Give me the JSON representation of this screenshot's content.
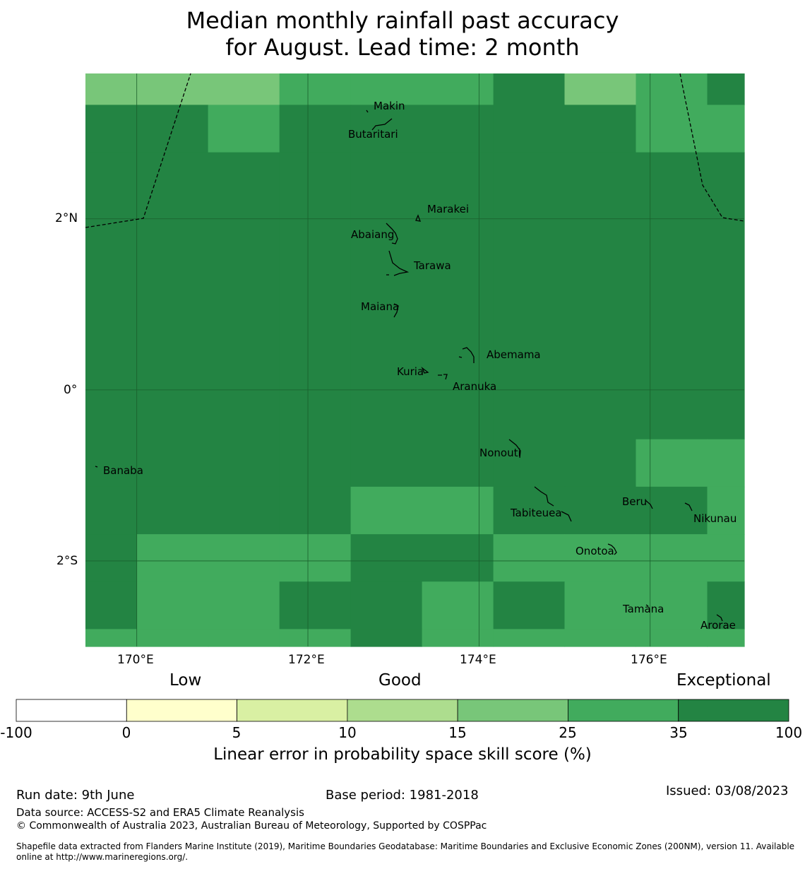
{
  "title": {
    "line1": "Median monthly rainfall past accuracy",
    "line2": "for August. Lead time: 2 month"
  },
  "map": {
    "lon_range": [
      169.4,
      177.1
    ],
    "lat_range": [
      -3.0,
      3.7
    ],
    "x_ticks": [
      "170°E",
      "172°E",
      "174°E",
      "176°E"
    ],
    "y_ticks": [
      "2°N",
      "0°",
      "2°S"
    ],
    "grid_cells": {
      "col_edges_lon": [
        169.4,
        170.0,
        170.833,
        171.667,
        172.5,
        173.333,
        174.167,
        175.0,
        175.833,
        176.667,
        177.1
      ],
      "row_edges_lat": [
        3.7,
        3.333,
        2.778,
        -0.577,
        -1.132,
        -1.687,
        -2.242,
        -2.797,
        -3.0
      ],
      "skill_rows": [
        [
          25,
          25,
          25,
          35,
          35,
          35,
          100,
          25,
          35,
          100
        ],
        [
          100,
          100,
          35,
          100,
          100,
          100,
          100,
          100,
          35,
          35
        ],
        [
          100,
          100,
          100,
          100,
          100,
          100,
          100,
          100,
          100,
          100
        ],
        [
          100,
          100,
          100,
          100,
          100,
          100,
          100,
          100,
          35,
          35
        ],
        [
          100,
          100,
          100,
          100,
          35,
          35,
          100,
          100,
          100,
          35
        ],
        [
          100,
          35,
          35,
          35,
          100,
          100,
          35,
          35,
          35,
          35
        ],
        [
          100,
          35,
          35,
          100,
          100,
          35,
          100,
          35,
          35,
          100
        ],
        [
          35,
          35,
          35,
          35,
          100,
          35,
          35,
          35,
          35,
          35
        ]
      ]
    },
    "islands": [
      {
        "name": "Makin",
        "lon": 172.97,
        "lat": 3.33
      },
      {
        "name": "Butaritari",
        "lon": 172.78,
        "lat": 3.02
      },
      {
        "name": "Marakei",
        "lon": 173.28,
        "lat": 2.02
      },
      {
        "name": "Abaiang",
        "lon": 172.95,
        "lat": 1.85
      },
      {
        "name": "Tarawa",
        "lon": 173.0,
        "lat": 1.42
      },
      {
        "name": "Maiana",
        "lon": 173.0,
        "lat": 0.92
      },
      {
        "name": "Abemama",
        "lon": 173.9,
        "lat": 0.4
      },
      {
        "name": "Kuria",
        "lon": 173.4,
        "lat": 0.22
      },
      {
        "name": "Aranuka",
        "lon": 173.6,
        "lat": 0.17
      },
      {
        "name": "Nonouti",
        "lon": 174.4,
        "lat": -0.65
      },
      {
        "name": "Banaba",
        "lon": 169.53,
        "lat": -0.87
      },
      {
        "name": "Tabiteuea",
        "lon": 174.9,
        "lat": -1.3
      },
      {
        "name": "Beru",
        "lon": 175.98,
        "lat": -1.33
      },
      {
        "name": "Nikunau",
        "lon": 176.48,
        "lat": -1.37
      },
      {
        "name": "Onotoa",
        "lon": 175.55,
        "lat": -1.83
      },
      {
        "name": "Tamana",
        "lon": 175.98,
        "lat": -2.5
      },
      {
        "name": "Arorae",
        "lon": 176.82,
        "lat": -2.65
      }
    ]
  },
  "colorbar": {
    "category_labels": [
      "Low",
      "Good",
      "Exceptional"
    ],
    "bounds": [
      "-100",
      "0",
      "5",
      "10",
      "15",
      "25",
      "35",
      "100"
    ],
    "colors": [
      "#ffffff",
      "#ffffcc",
      "#d9f0a3",
      "#addd8e",
      "#78c679",
      "#41ab5d",
      "#238443"
    ],
    "title": "Linear error in probability space skill score (%)"
  },
  "footer": {
    "run_date": "Run date: 9th June",
    "base_period": "Base period: 1981-2018",
    "issued": "Issued: 03/08/2023",
    "data_source": "Data source: ACCESS-S2 and ERA5 Climate Reanalysis",
    "copyright": "© Commonwealth of Australia 2023, Australian Bureau of Meteorology, Supported by COSPPac",
    "shapefile_line1": "Shapefile data extracted from Flanders Marine Institute (2019), Maritime Boundaries Geodatabase: Maritime Boundaries and Exclusive Economic Zones (200NM), version 11. Available",
    "shapefile_line2": "online at http://www.marineregions.org/."
  }
}
